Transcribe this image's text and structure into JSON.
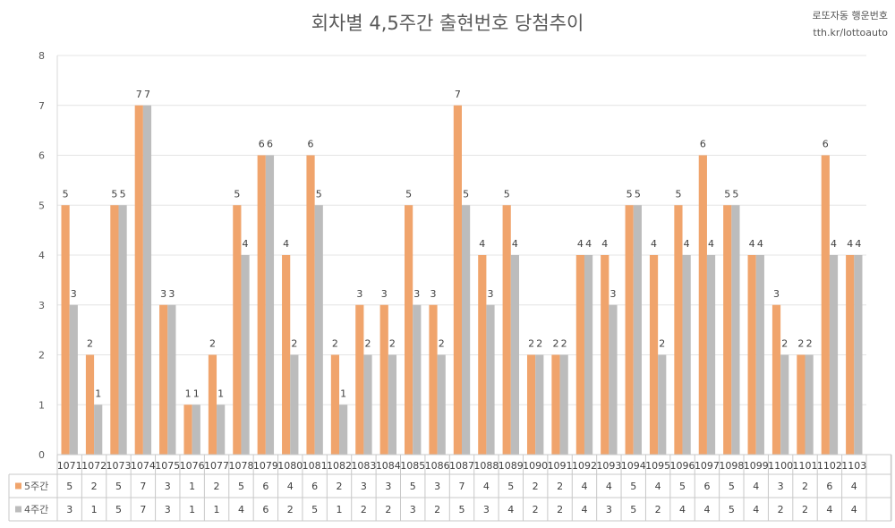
{
  "watermark": {
    "line1": "로또자동 행운번호",
    "line2": "tth.kr/lottoauto"
  },
  "chart_data": {
    "type": "bar",
    "title": "회차별 4,5주간 출현번호 당첨추이",
    "xlabel": "",
    "ylabel": "",
    "ylim": [
      0,
      8
    ],
    "yticks": [
      0,
      1,
      2,
      3,
      4,
      5,
      6,
      7,
      8
    ],
    "grid": true,
    "legend": "table-bottom",
    "categories": [
      "1071",
      "1072",
      "1073",
      "1074",
      "1075",
      "1076",
      "1077",
      "1078",
      "1079",
      "1080",
      "1081",
      "1082",
      "1083",
      "1084",
      "1085",
      "1086",
      "1087",
      "1088",
      "1089",
      "1090",
      "1091",
      "1092",
      "1093",
      "1094",
      "1095",
      "1096",
      "1097",
      "1098",
      "1099",
      "1100",
      "1101",
      "1102",
      "1103"
    ],
    "series": [
      {
        "name": "5주간",
        "color": "#f0a46c",
        "values": [
          5,
          2,
          5,
          7,
          3,
          1,
          2,
          5,
          6,
          4,
          6,
          2,
          3,
          3,
          5,
          3,
          7,
          4,
          5,
          2,
          2,
          4,
          4,
          5,
          4,
          5,
          6,
          5,
          4,
          3,
          2,
          6,
          4
        ]
      },
      {
        "name": "4주간",
        "color": "#bcbcbc",
        "values": [
          3,
          1,
          5,
          7,
          3,
          1,
          1,
          4,
          6,
          2,
          5,
          1,
          2,
          2,
          3,
          2,
          5,
          3,
          4,
          2,
          2,
          4,
          3,
          5,
          2,
          4,
          4,
          5,
          4,
          2,
          2,
          4,
          4
        ]
      }
    ]
  }
}
